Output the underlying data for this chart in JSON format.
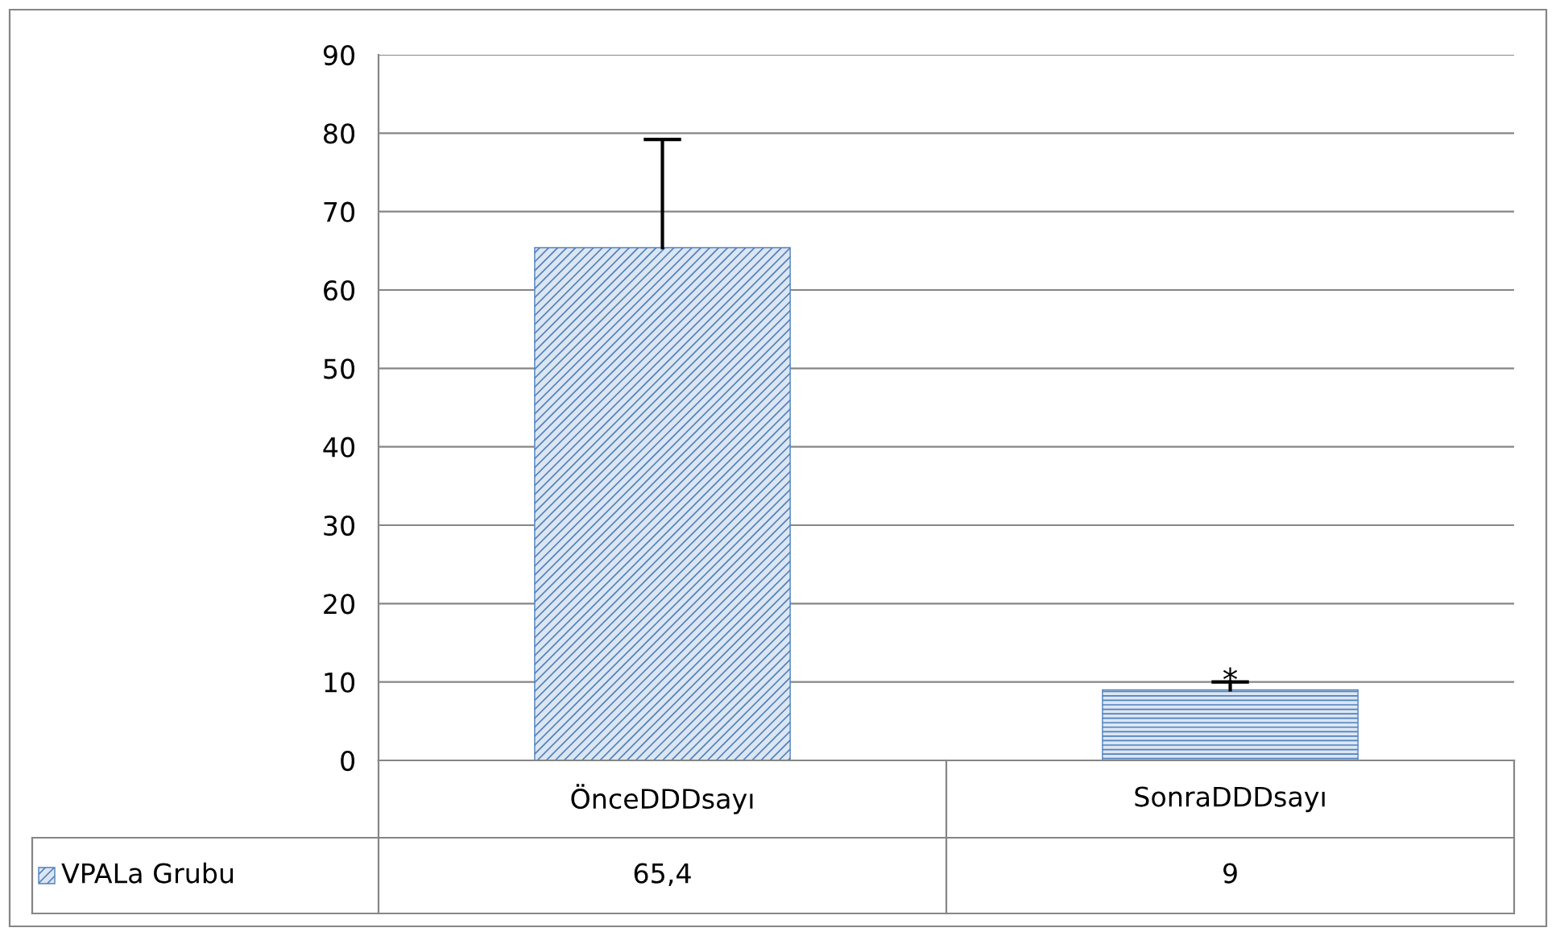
{
  "chart_data": {
    "type": "bar",
    "categories": [
      "ÖnceDDDsayı",
      "SonraDDDsayı"
    ],
    "series": [
      {
        "name": "VPALa Grubu",
        "color": "#4f81bd",
        "values": [
          65.4,
          9
        ],
        "errors": [
          [
            65.4,
            79.2
          ],
          [
            9,
            10
          ]
        ],
        "value_labels": [
          "65,4",
          "9"
        ]
      }
    ],
    "ylim": [
      0,
      90
    ],
    "yticks": [
      0,
      10,
      20,
      30,
      40,
      50,
      60,
      70,
      80,
      90
    ],
    "grid": "y",
    "annotations": [
      {
        "text": "*",
        "x": "SonraDDDsayı",
        "y": 10
      }
    ]
  }
}
